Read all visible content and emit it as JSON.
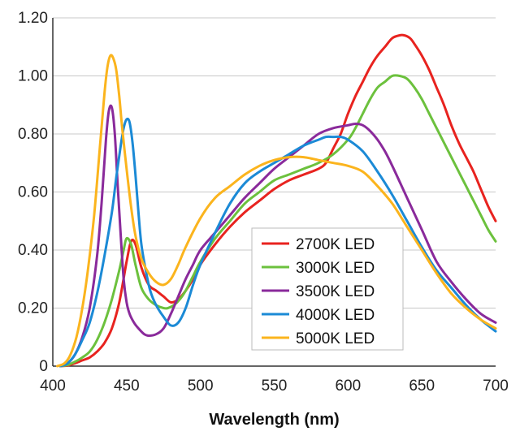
{
  "chart_data": {
    "type": "line",
    "title": "",
    "xlabel": "Wavelength (nm)",
    "ylabel": "",
    "xlim": [
      400,
      700
    ],
    "ylim": [
      0,
      1.2
    ],
    "x_ticks": [
      400,
      450,
      500,
      550,
      600,
      650,
      700
    ],
    "x_tick_labels": [
      "400",
      "450",
      "500",
      "550",
      "600",
      "650",
      "700"
    ],
    "y_ticks": [
      0,
      0.2,
      0.4,
      0.6,
      0.8,
      1.0,
      1.2
    ],
    "y_tick_labels": [
      "0",
      "0.20",
      "0.40",
      "0.60",
      "0.80",
      "1.00",
      "1.20"
    ],
    "grid": "horizontal",
    "legend_position": "center-right",
    "series": [
      {
        "name": "2700K LED",
        "color": "#e8231f",
        "x": [
          405,
          410,
          415,
          420,
          425,
          430,
          435,
          440,
          445,
          450,
          453,
          456,
          460,
          465,
          470,
          475,
          480,
          485,
          490,
          495,
          500,
          510,
          520,
          530,
          540,
          550,
          560,
          570,
          580,
          585,
          590,
          595,
          600,
          605,
          610,
          615,
          620,
          625,
          630,
          635,
          638,
          642,
          645,
          650,
          655,
          660,
          665,
          670,
          675,
          680,
          685,
          690,
          695,
          700
        ],
        "y": [
          0,
          0.002,
          0.01,
          0.02,
          0.03,
          0.05,
          0.08,
          0.13,
          0.22,
          0.36,
          0.43,
          0.42,
          0.34,
          0.28,
          0.26,
          0.24,
          0.22,
          0.23,
          0.26,
          0.3,
          0.35,
          0.42,
          0.48,
          0.53,
          0.57,
          0.61,
          0.64,
          0.66,
          0.68,
          0.7,
          0.75,
          0.8,
          0.87,
          0.93,
          0.98,
          1.03,
          1.07,
          1.1,
          1.13,
          1.14,
          1.14,
          1.13,
          1.11,
          1.07,
          1.02,
          0.96,
          0.9,
          0.83,
          0.77,
          0.72,
          0.67,
          0.61,
          0.55,
          0.5
        ]
      },
      {
        "name": "3000K LED",
        "color": "#6cc13d",
        "x": [
          405,
          410,
          415,
          420,
          425,
          430,
          435,
          440,
          445,
          448,
          450,
          453,
          456,
          460,
          465,
          470,
          475,
          478,
          482,
          486,
          490,
          495,
          500,
          510,
          520,
          530,
          540,
          550,
          560,
          570,
          580,
          590,
          600,
          605,
          610,
          615,
          620,
          625,
          630,
          635,
          640,
          645,
          650,
          655,
          660,
          665,
          670,
          675,
          680,
          685,
          690,
          695,
          700
        ],
        "y": [
          0,
          0.004,
          0.015,
          0.03,
          0.05,
          0.09,
          0.15,
          0.23,
          0.33,
          0.4,
          0.44,
          0.42,
          0.35,
          0.27,
          0.23,
          0.21,
          0.2,
          0.2,
          0.21,
          0.23,
          0.26,
          0.31,
          0.36,
          0.44,
          0.5,
          0.56,
          0.6,
          0.64,
          0.66,
          0.68,
          0.7,
          0.73,
          0.78,
          0.82,
          0.87,
          0.92,
          0.96,
          0.98,
          1.0,
          1.0,
          0.99,
          0.96,
          0.92,
          0.87,
          0.82,
          0.77,
          0.72,
          0.67,
          0.62,
          0.57,
          0.52,
          0.47,
          0.43
        ]
      },
      {
        "name": "3500K LED",
        "color": "#8a2a9b",
        "x": [
          405,
          410,
          415,
          420,
          425,
          430,
          433,
          436,
          438,
          440,
          442,
          444,
          446,
          448,
          450,
          452,
          455,
          458,
          462,
          465,
          470,
          475,
          480,
          485,
          490,
          495,
          500,
          510,
          520,
          530,
          540,
          550,
          560,
          570,
          580,
          590,
          600,
          605,
          610,
          615,
          620,
          625,
          630,
          640,
          650,
          660,
          670,
          680,
          690,
          700
        ],
        "y": [
          0,
          0.01,
          0.04,
          0.1,
          0.2,
          0.38,
          0.56,
          0.78,
          0.88,
          0.89,
          0.8,
          0.62,
          0.45,
          0.3,
          0.22,
          0.18,
          0.15,
          0.13,
          0.11,
          0.105,
          0.11,
          0.13,
          0.18,
          0.24,
          0.3,
          0.35,
          0.4,
          0.46,
          0.52,
          0.58,
          0.63,
          0.68,
          0.72,
          0.76,
          0.8,
          0.82,
          0.83,
          0.835,
          0.83,
          0.81,
          0.78,
          0.74,
          0.69,
          0.58,
          0.47,
          0.36,
          0.29,
          0.23,
          0.18,
          0.15
        ]
      },
      {
        "name": "4000K LED",
        "color": "#1b8ad6",
        "x": [
          405,
          410,
          415,
          420,
          425,
          430,
          435,
          440,
          443,
          446,
          448,
          450,
          452,
          454,
          456,
          458,
          460,
          463,
          466,
          470,
          475,
          480,
          485,
          490,
          495,
          500,
          510,
          520,
          530,
          540,
          550,
          560,
          570,
          580,
          585,
          590,
          595,
          600,
          610,
          620,
          630,
          640,
          650,
          660,
          670,
          680,
          690,
          700
        ],
        "y": [
          0,
          0.01,
          0.04,
          0.09,
          0.15,
          0.25,
          0.38,
          0.53,
          0.65,
          0.76,
          0.82,
          0.85,
          0.84,
          0.77,
          0.66,
          0.53,
          0.42,
          0.33,
          0.26,
          0.21,
          0.17,
          0.14,
          0.15,
          0.2,
          0.28,
          0.35,
          0.46,
          0.56,
          0.63,
          0.67,
          0.7,
          0.73,
          0.76,
          0.78,
          0.79,
          0.79,
          0.79,
          0.78,
          0.74,
          0.67,
          0.59,
          0.5,
          0.41,
          0.33,
          0.27,
          0.21,
          0.16,
          0.12
        ]
      },
      {
        "name": "5000K LED",
        "color": "#fbb41d",
        "x": [
          403,
          408,
          412,
          416,
          420,
          424,
          428,
          432,
          435,
          437,
          439,
          441,
          443,
          445,
          447,
          450,
          453,
          456,
          460,
          465,
          470,
          475,
          480,
          485,
          490,
          500,
          510,
          520,
          530,
          540,
          550,
          560,
          570,
          580,
          590,
          600,
          610,
          620,
          630,
          640,
          650,
          660,
          670,
          680,
          690,
          700
        ],
        "y": [
          0,
          0.01,
          0.04,
          0.1,
          0.2,
          0.34,
          0.52,
          0.76,
          0.94,
          1.03,
          1.07,
          1.06,
          1.02,
          0.93,
          0.82,
          0.68,
          0.55,
          0.45,
          0.37,
          0.32,
          0.29,
          0.28,
          0.3,
          0.35,
          0.41,
          0.51,
          0.58,
          0.62,
          0.66,
          0.69,
          0.71,
          0.72,
          0.72,
          0.71,
          0.7,
          0.69,
          0.67,
          0.62,
          0.56,
          0.48,
          0.4,
          0.32,
          0.25,
          0.2,
          0.16,
          0.13
        ]
      }
    ]
  }
}
